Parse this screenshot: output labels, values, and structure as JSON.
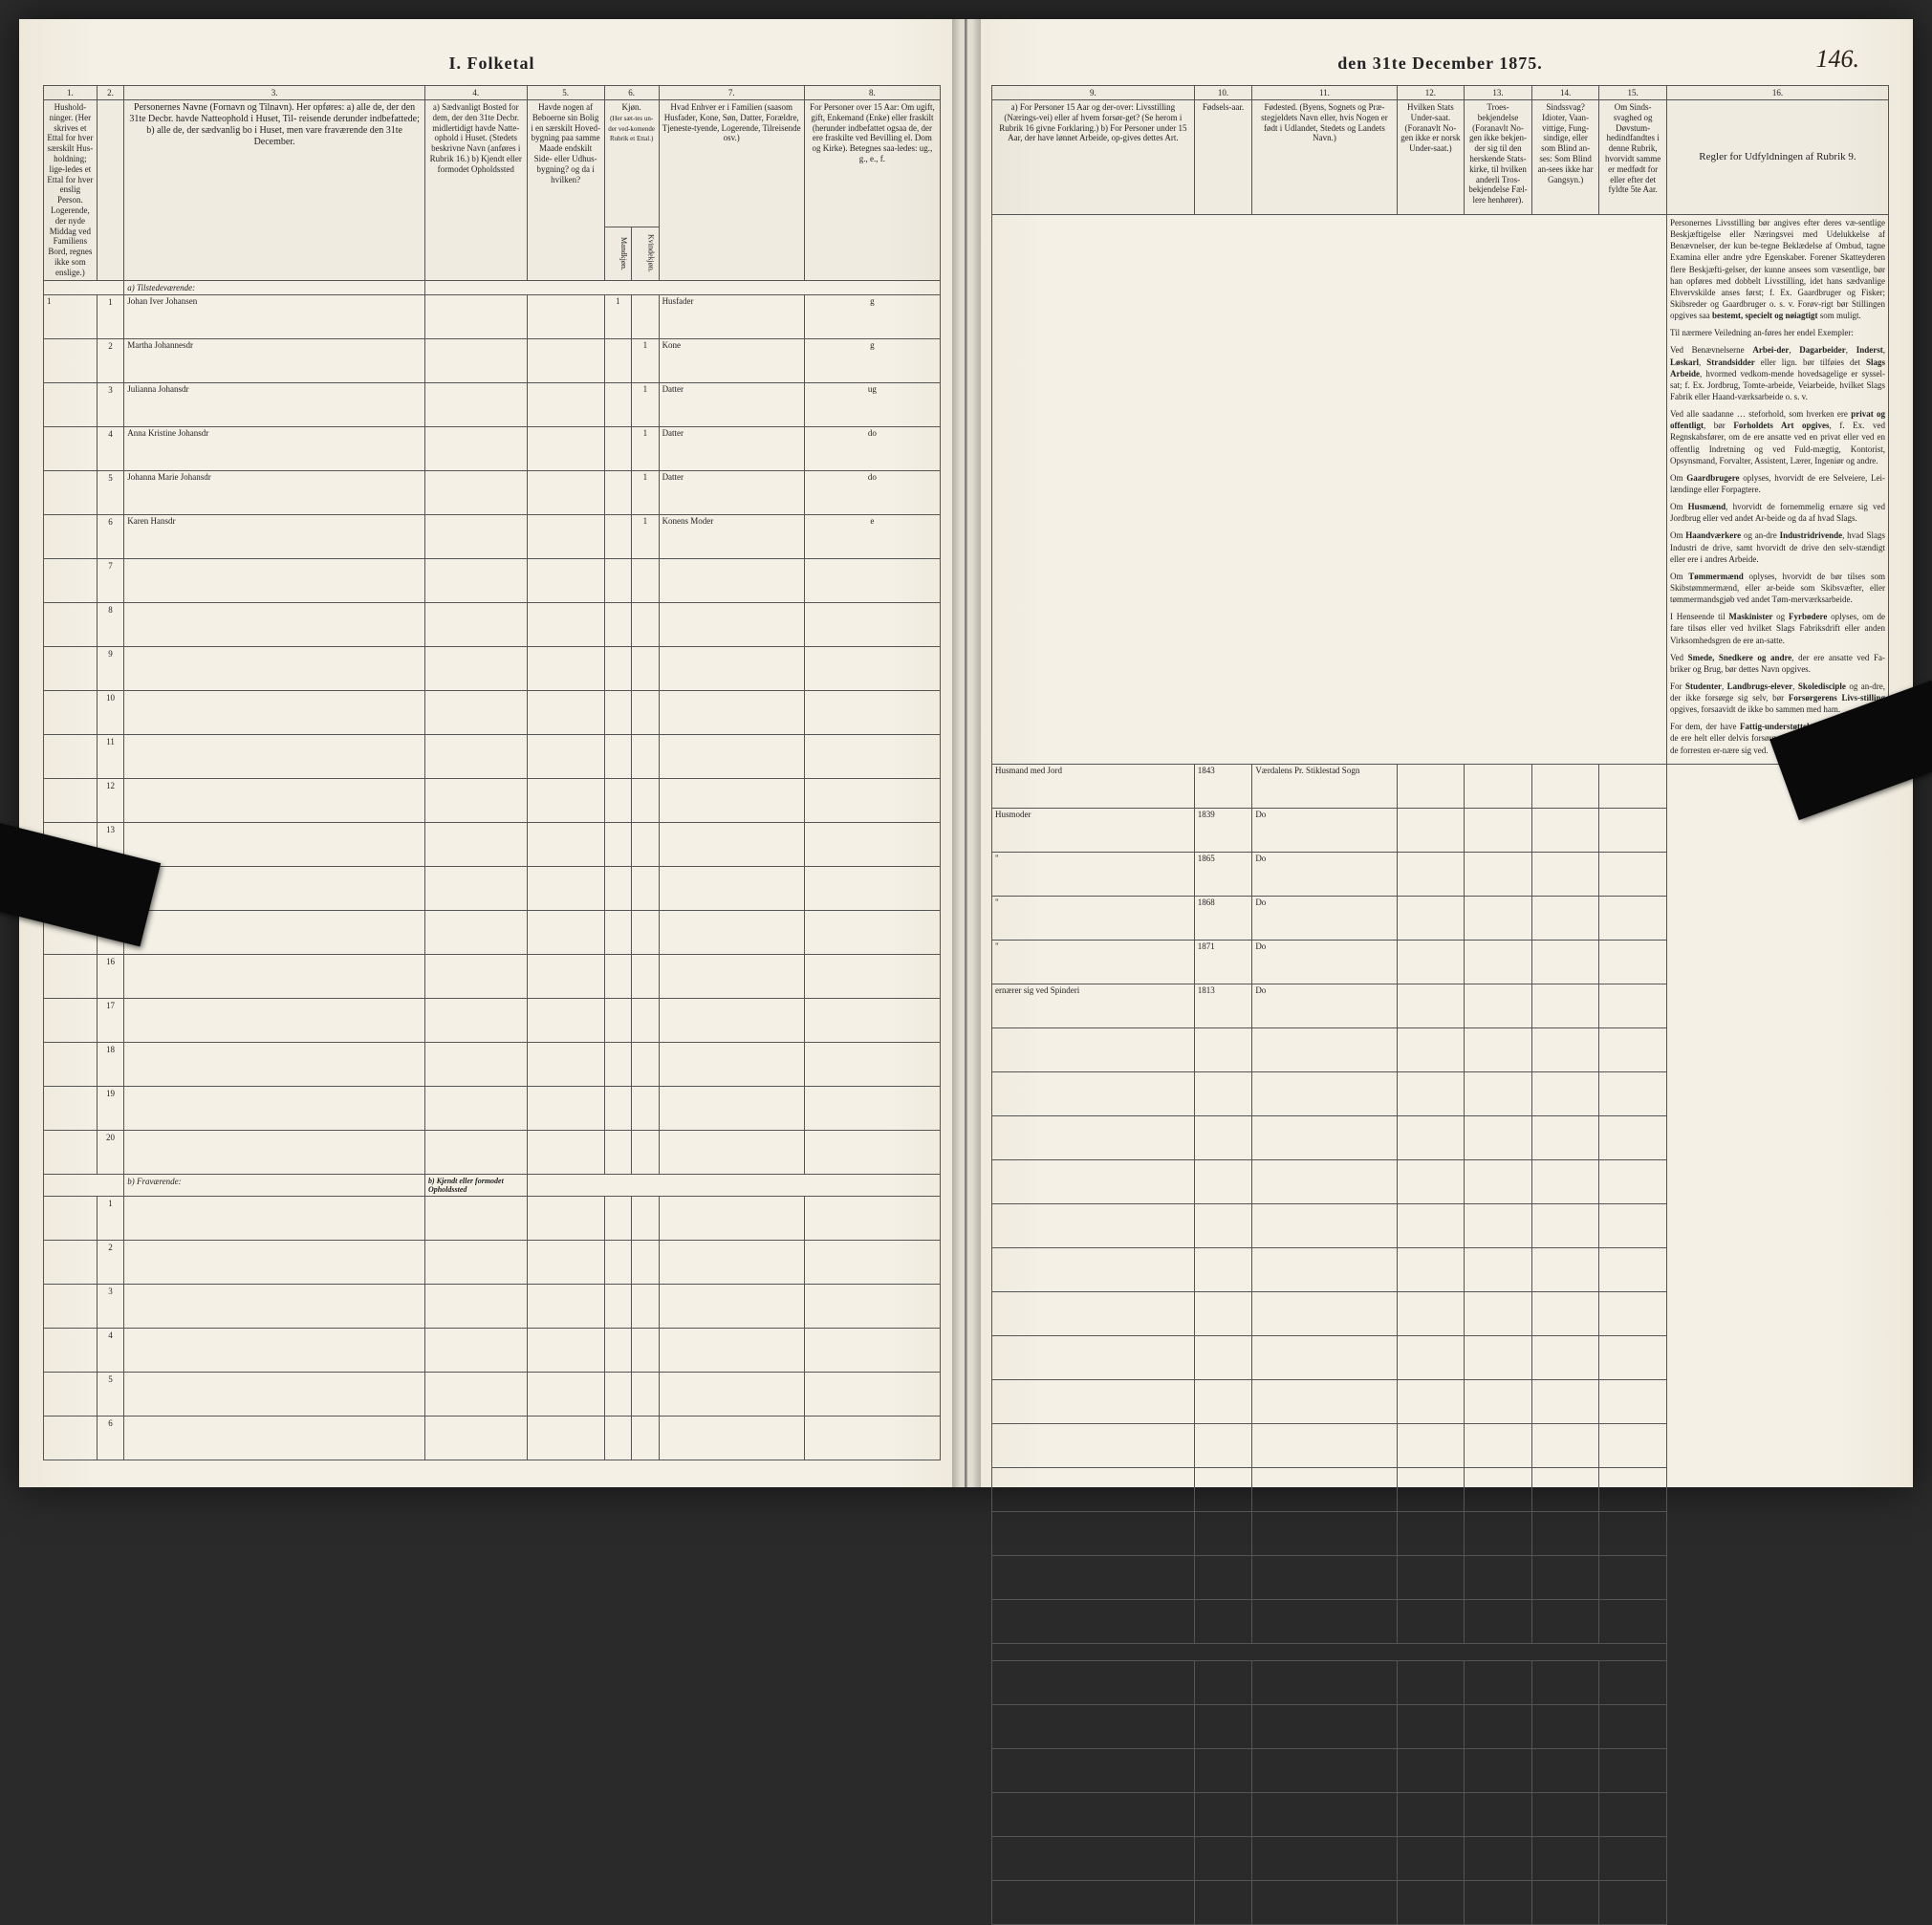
{
  "document": {
    "title_left": "I. Folketal",
    "title_right": "den 31te December 1875.",
    "page_number": "146."
  },
  "columns_left": {
    "c1": "1.",
    "c2": "2.",
    "c3": "3.",
    "c4": "4.",
    "c5": "5.",
    "c6": "6.",
    "c7": "7.",
    "c8": "8.",
    "h1": "Hushold-\nninger.\n(Her skrives et Ettal for hver særskilt Hus-holdning; lige-ledes et Ettal for hver enslig Person. Logerende, der nyde Middag ved Familiens Bord, regnes ikke som enslige.)",
    "h3": "Personernes Navne (Fornavn og Tilnavn).\nHer opføres:\na) alle de, der den 31te Decbr. havde Natteophold i Huset, Til-\nreisende derunder indbefattede;\nb) alle de, der sædvanlig bo i Huset, men vare fraværende\nden 31te December.",
    "h4": "a) Sædvanligt Bosted for dem, der den 31te Decbr. midlertidigt havde Natte-ophold i Huset. (Stedets beskrivne Navn (anføres i Rubrik 16.)\nb) Kjendt eller formodet Opholdssted",
    "h5": "Havde nogen af Beboerne sin Bolig i en særskilt Hoved-bygning paa samme Maade endskilt Side- eller Udhus-bygning? og da i hvilken?",
    "h6_top": "Kjøn.",
    "h6_sub": "(Her sæt-tes un-der ved-komende Rubrik et Ettal.)",
    "h6_m": "Mandkjøn.",
    "h6_k": "Kvindekjøn.",
    "h7": "Hvad Enhver er i Familien\n(saasom Husfader, Kone, Søn, Datter, Forældre, Tjeneste-tyende, Logerende, Tilreisende osv.)",
    "h8": "For Personer over 15 Aar: Om ugift, gift, Enkemand (Enke) eller fraskilt (herunder indbefattet ogsaa de, der ere fraskilte ved Bevilling el. Dom og Kirke).\nBetegnes saa-ledes:\nug., g., e., f."
  },
  "columns_right": {
    "c9": "9.",
    "c10": "10.",
    "c11": "11.",
    "c12": "12.",
    "c13": "13.",
    "c14": "14.",
    "c15": "15.",
    "c16": "16.",
    "h9": "a) For Personer 15 Aar og der-over: Livsstilling (Nærings-vei) eller af hvem forsør-get? (Se herom i Rubrik 16 givne Forklaring.)\nb) For Personer under 15 Aar, der have lønnet Arbeide, op-gives dettes Art.",
    "h10": "Fødsels-aar.",
    "h11": "Fødested.\n(Byens, Sognets og Præ-stegjeldets Navn eller, hvis Nogen er født i Udlandet, Stedets og Landets Navn.)",
    "h12": "Hvilken Stats Under-saat.\n(Foranavlt No-gen ikke er norsk Under-saat.)",
    "h13": "Troes-bekjendelse\n(Foranavlt No-gen ikke bekjen-der sig til den herskende Stats-kirke, til hvilken anderli Tros-bekjendelse Fæl-lere henhører).",
    "h14": "Sindssvag? Idioter, Vaan-vittige, Fung-sindige, eller som Blind an-ses: Som Blind an-sees ikke har Gangsyn.)",
    "h15": "Om Sinds-svaghed og Døvstum-hedindfandtes i denne Rubrik, hvorvidt samme er medfødt for eller efter det fyldte 5te Aar.",
    "h16": "Regler for Udfyldningen af Rubrik 9."
  },
  "section_present": "a) Tilstedeværende:",
  "section_absent": "b) Fraværende:",
  "absent_col4": "b) Kjendt eller formodet Opholdssted",
  "rows": [
    {
      "n": "1",
      "name": "Johan Iver Johansen",
      "m": "1",
      "k": "",
      "fam": "Husfader",
      "civ": "g",
      "occ": "Husmand med Jord",
      "year": "1843",
      "place": "Værdalens Pr. Stiklestad Sogn"
    },
    {
      "n": "2",
      "name": "Martha Johannesdr",
      "m": "",
      "k": "1",
      "fam": "Kone",
      "civ": "g",
      "occ": "Husmoder",
      "year": "1839",
      "place": "Do"
    },
    {
      "n": "3",
      "name": "Julianna Johansdr",
      "m": "",
      "k": "1",
      "fam": "Datter",
      "civ": "ug",
      "occ": "\"",
      "year": "1865",
      "place": "Do"
    },
    {
      "n": "4",
      "name": "Anna Kristine Johansdr",
      "m": "",
      "k": "1",
      "fam": "Datter",
      "civ": "do",
      "occ": "\"",
      "year": "1868",
      "place": "Do"
    },
    {
      "n": "5",
      "name": "Johanna Marie Johansdr",
      "m": "",
      "k": "1",
      "fam": "Datter",
      "civ": "do",
      "occ": "\"",
      "year": "1871",
      "place": "Do"
    },
    {
      "n": "6",
      "name": "Karen Hansdr",
      "m": "",
      "k": "1",
      "fam": "Konens Moder",
      "civ": "e",
      "occ": "ernærer sig ved Spinderi",
      "year": "1813",
      "place": "Do"
    }
  ],
  "empty_present_rows": [
    "7",
    "8",
    "9",
    "10",
    "11",
    "12",
    "13",
    "14",
    "15",
    "16",
    "17",
    "18",
    "19",
    "20"
  ],
  "empty_absent_rows": [
    "1",
    "2",
    "3",
    "4",
    "5",
    "6"
  ],
  "side_text": "Personernes Livsstilling bør angives efter deres væ-sentlige Beskjæftigelse eller Næringsvei med Udelukkelse af Benævnelser, der kun be-tegne Beklædelse af Ombud, tagne Examina eller andre ydre Egenskaber. Forener Skatteyderen flere Beskjæfti-gelser, der kunne ansees som væsentlige, bør han opføres med dobbelt Livsstilling, idet hans sædvanlige Ehvervskilde anses først; f. Ex. Gaardbruger og Fisker; Skibsreder og Gaardbruger o. s. v. Forøv-rigt bør Stillingen opgives saa bestemt, specielt og nøiagtigt som muligt.\n\nTil nærmere Veiledning an-føres her endel Exempler:\n\nVed Benævnelserne Arbei-der, Dagarbeider, Inderst, Løskarl, Strandsidder eller lign. bør tilføies det Slags Arbeide, hvormed vedkom-mende hovedsagelige er syssel-sat; f. Ex. Jordbrug, Tomte-arbeide, Veiarbeide, hvilket Slags Fabrik eller Haand-værksarbeide o. s. v.\n\nVed alle saadanne … steforhold, som hverken ere privat og offentligt, bør Forholdets Art opgives, f. Ex. ved Regnskabsfører, om de ere ansatte ved en privat eller ved en offentlig Indretning og ved Fuld-mægtig, Kontorist, Opsynsmand, Forvalter, Assistent, Lærer, Ingeniør og andre.\n\nOm Gaardbrugere oplyses, hvorvidt de ere Selveiere, Lei-lændinge eller Forpagtere.\n\nOm Husmænd, hvorvidt de fornemmelig ernære sig ved Jordbrug eller ved andet Ar-beide og da af hvad Slags.\n\nOm Haandværkere og an-dre Industridrivende, hvad Slags Industri de drive, samt hvorvidt de drive den selv-stændigt eller ere i andres Arbeide.\n\nOm Tømmermænd oplyses, hvorvidt de bør tilses som Skibstømmermænd, eller ar-beide som Skibsvæfter, eller tømmermandsgjøb ved andet Tøm-merværksarbeide.\n\nI Henseende til Maskinister og Fyrbødere oplyses, om de fare tilsøs eller ved hvilket Slags Fabriksdrift eller anden Virksomhedsgren de ere an-satte.\n\nVed Smede, Snedkere og andre, der ere ansatte ved Fa-briker og Brug, bør dettes Navn opgives.\n\nFor Studenter, Landbrugs-elever, Skoledisciple og an-dre, der ikke forsørge sig selv, bør Forsørgerens Livs-stilling opgives, forsaavidt de ikke bo sammen med ham.\n\nFor dem, der have Fattig-understøttelse, oplyses, hvor-vidt de ere helt eller delvis forsørgede, og i sidste Til-fælde, hvad de forresten er-nære sig ved.",
  "colors": {
    "paper": "#f4f0e6",
    "ink": "#222222",
    "handwriting": "#2a2218",
    "rule": "#555555"
  }
}
